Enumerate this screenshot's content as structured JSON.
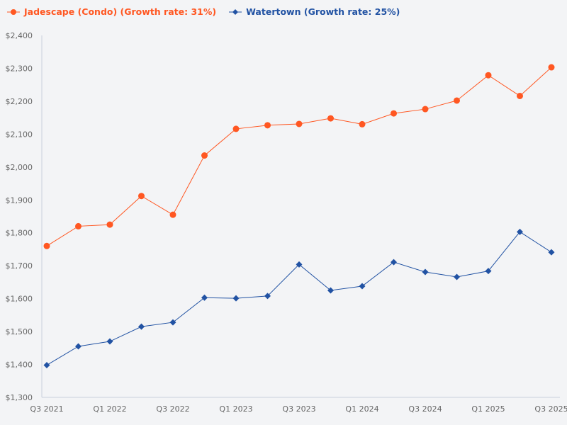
{
  "chart_data": {
    "type": "line",
    "title": "",
    "xlabel": "",
    "ylabel": "",
    "ylim": [
      1300,
      2400
    ],
    "yticks": [
      "$1,300",
      "$1,400",
      "$1,500",
      "$1,600",
      "$1,700",
      "$1,800",
      "$1,900",
      "$2,000",
      "$2,100",
      "$2,200",
      "$2,300",
      "$2,400"
    ],
    "x": [
      "Q3 2021",
      "Q4 2021",
      "Q1 2022",
      "Q2 2022",
      "Q3 2022",
      "Q4 2022",
      "Q1 2023",
      "Q2 2023",
      "Q3 2023",
      "Q4 2023",
      "Q1 2024",
      "Q2 2024",
      "Q3 2024",
      "Q4 2024",
      "Q1 2025",
      "Q2 2025",
      "Q3 2025"
    ],
    "xtick_labels": [
      "Q3 2021",
      "",
      "Q1 2022",
      "",
      "Q3 2022",
      "",
      "Q1 2023",
      "",
      "Q3 2023",
      "",
      "Q1 2024",
      "",
      "Q3 2024",
      "",
      "Q1 2025",
      "",
      "Q3 2025"
    ],
    "grid": false,
    "legend_placement": "top-left",
    "series": [
      {
        "name": "Jadescape (Condo) (Growth rate: 31%)",
        "color": "#ff5722",
        "marker": "circle",
        "values": [
          1760,
          1820,
          1825,
          1912,
          1855,
          2035,
          2116,
          2127,
          2131,
          2148,
          2130,
          2163,
          2176,
          2202,
          2279,
          2216,
          2303
        ]
      },
      {
        "name": "Watertown (Growth rate: 25%)",
        "color": "#2152a3",
        "marker": "diamond",
        "values": [
          1398,
          1455,
          1470,
          1515,
          1528,
          1603,
          1601,
          1608,
          1704,
          1625,
          1638,
          1711,
          1681,
          1666,
          1684,
          1803,
          1741
        ]
      }
    ]
  }
}
